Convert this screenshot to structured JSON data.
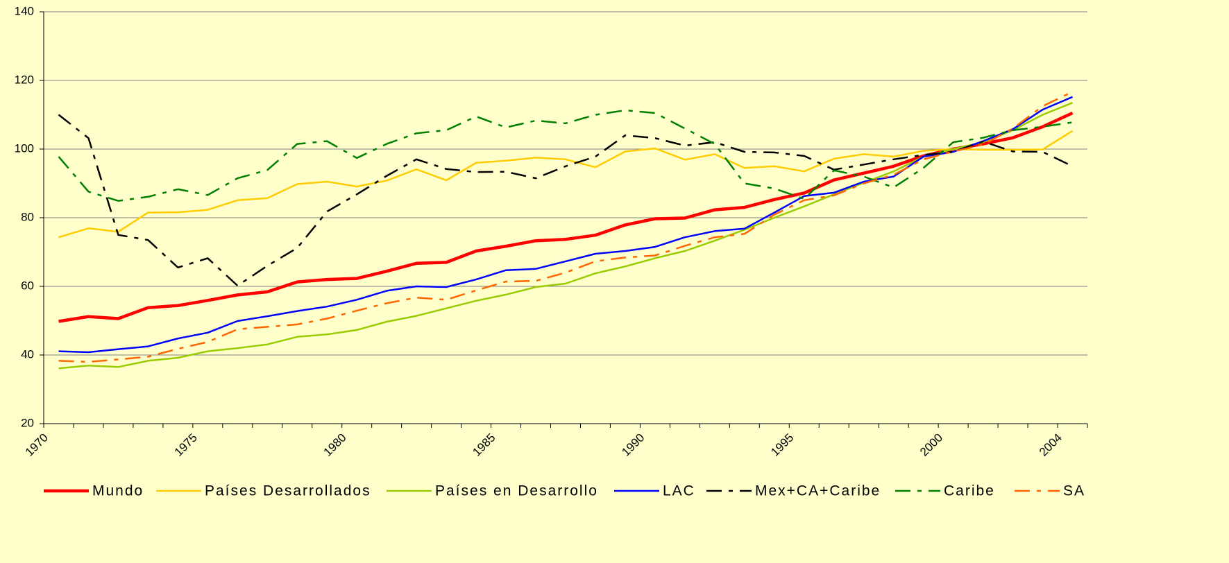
{
  "chart_data": {
    "type": "line",
    "categories": [
      "1970",
      null,
      null,
      null,
      null,
      "1975",
      null,
      null,
      null,
      null,
      "1980",
      null,
      null,
      null,
      null,
      "1985",
      null,
      null,
      null,
      null,
      "1990",
      null,
      null,
      null,
      null,
      "1995",
      null,
      null,
      null,
      null,
      "2000",
      null,
      null,
      null,
      "2004"
    ],
    "ylim": [
      20,
      140
    ],
    "yticks": [
      20,
      40,
      60,
      80,
      100,
      120,
      140
    ],
    "grid": true,
    "legend": "bottom",
    "series": [
      {
        "name": "Mundo",
        "color": "#ff0000",
        "values": [
          49.8,
          51.2,
          50.6,
          53.8,
          54.4,
          55.9,
          57.5,
          58.4,
          61.3,
          62,
          62.3,
          64.4,
          66.7,
          67,
          70.3,
          71.7,
          73.3,
          73.7,
          74.9,
          77.9,
          79.7,
          79.9,
          82.3,
          83,
          85.3,
          87.2,
          91,
          93,
          95,
          98,
          100,
          101.5,
          103.3,
          106.5,
          110.5
        ]
      },
      {
        "name": "Países Desarrollados",
        "color": "#ffcc00",
        "values": [
          74.3,
          76.9,
          75.9,
          81.5,
          81.6,
          82.3,
          85.1,
          85.7,
          89.8,
          90.5,
          89.1,
          90.8,
          94.1,
          90.9,
          96,
          96.6,
          97.5,
          97,
          94.7,
          99.3,
          100.2,
          96.9,
          98.5,
          94.5,
          95,
          93.5,
          97.2,
          98.5,
          97.8,
          99.5,
          100,
          99.8,
          99.8,
          99.9,
          105.3
        ]
      },
      {
        "name": "Países en Desarrollo",
        "color": "#99cc00",
        "values": [
          36.1,
          36.9,
          36.5,
          38.3,
          39.2,
          41.1,
          42,
          43.1,
          45.3,
          46,
          47.3,
          49.7,
          51.4,
          53.6,
          55.8,
          57.6,
          59.8,
          60.8,
          63.8,
          65.8,
          68.2,
          70.3,
          73.3,
          76.5,
          80,
          83.3,
          86.8,
          90.2,
          93.5,
          97.8,
          100,
          102,
          105.5,
          110,
          113.5
        ]
      },
      {
        "name": "LAC",
        "color": "#0000ff",
        "values": [
          41.1,
          40.8,
          41.7,
          42.5,
          44.8,
          46.5,
          49.9,
          51.3,
          52.8,
          54.1,
          56.1,
          58.7,
          60,
          59.8,
          62,
          64.7,
          65.1,
          67.3,
          69.5,
          70.3,
          71.5,
          74.3,
          76.1,
          76.8,
          81.5,
          86.3,
          87.3,
          90.5,
          92,
          97.8,
          99.2,
          102.3,
          105.8,
          111.5,
          115.2
        ]
      },
      {
        "name": "Mex+CA+Caribe",
        "color": "#000000",
        "dash": "22,10,6,10",
        "values": [
          110,
          103.2,
          75,
          73.5,
          65.5,
          68.2,
          60.2,
          66,
          71.2,
          81.8,
          86.8,
          92.2,
          97,
          94.2,
          93.3,
          93.4,
          91.5,
          95,
          97.8,
          104,
          103.2,
          101,
          102,
          99.2,
          99,
          98,
          94,
          95.5,
          97,
          98.3,
          99.2,
          102.2,
          99.3,
          99.2,
          95
        ]
      },
      {
        "name": "Caribe",
        "color": "#008000",
        "dash": "22,10,6,10",
        "values": [
          97.8,
          87.6,
          84.9,
          86.1,
          88.3,
          86.6,
          91.5,
          93.9,
          101.5,
          102.3,
          97.4,
          101.5,
          104.6,
          105.5,
          109.5,
          106.3,
          108.3,
          107.5,
          110,
          111.3,
          110.5,
          106,
          101.5,
          90,
          88.5,
          85.5,
          93.8,
          92,
          88.8,
          94.5,
          102,
          103.3,
          105.5,
          106.5,
          107.8
        ]
      },
      {
        "name": "SA",
        "color": "#ff6600",
        "dash": "22,10,6,10",
        "values": [
          38.3,
          38,
          38.7,
          39.5,
          41.8,
          43.8,
          47.5,
          48.2,
          48.9,
          50.6,
          52.9,
          55.1,
          56.7,
          56.1,
          58.8,
          61.4,
          61.6,
          64,
          67.3,
          68.4,
          69,
          71.8,
          74.3,
          75.3,
          80.9,
          85.1,
          86.5,
          90,
          92.5,
          97,
          99.3,
          101.3,
          106,
          112.5,
          116.7
        ]
      }
    ]
  }
}
